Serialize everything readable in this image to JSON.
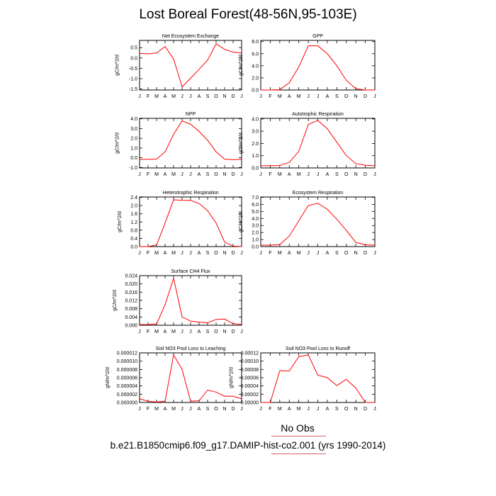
{
  "title": "Lost Boreal Forest(48-56N,95-103E)",
  "footer": {
    "obs_label": "No Obs",
    "case_label": "b.e21.B1850cmip6.f09_g17.DAMIP-hist-co2.001 (yrs 1990-2014)"
  },
  "colors": {
    "model_line": "#ff0000",
    "footer_rule": "#e06060"
  },
  "chart_data": [
    {
      "type": "line",
      "title": "Net Ecosystem Exchange",
      "ylabel": "gC/m^2/d",
      "categories": [
        "J",
        "F",
        "M",
        "A",
        "M",
        "J",
        "J",
        "A",
        "S",
        "O",
        "N",
        "D",
        "J"
      ],
      "ylim": [
        -1.55,
        0.85
      ],
      "yticks": [
        -1.5,
        -1.0,
        -0.5,
        0.0,
        0.5
      ],
      "ytick_labels": [
        "-1.5",
        "-1.0",
        "-0.5",
        "0.0",
        "0.5"
      ],
      "series": [
        {
          "values": [
            0.22,
            0.2,
            0.24,
            0.55,
            -0.05,
            -1.4,
            -0.98,
            -0.55,
            -0.1,
            0.68,
            0.42,
            0.28,
            0.24
          ]
        }
      ]
    },
    {
      "type": "line",
      "title": "GPP",
      "ylabel": "gC/m^2/d",
      "categories": [
        "J",
        "F",
        "M",
        "A",
        "M",
        "J",
        "J",
        "A",
        "S",
        "O",
        "N",
        "D",
        "J"
      ],
      "ylim": [
        0,
        8.2
      ],
      "yticks": [
        0,
        2,
        4,
        6,
        8
      ],
      "ytick_labels": [
        "0.0",
        "2.0",
        "4.0",
        "6.0",
        "8.0"
      ],
      "series": [
        {
          "values": [
            0.0,
            0.0,
            0.05,
            1.2,
            3.8,
            7.3,
            7.3,
            6.0,
            4.0,
            1.6,
            0.2,
            0.0,
            0.0
          ]
        }
      ]
    },
    {
      "type": "line",
      "title": "NPP",
      "ylabel": "gC/m^2/d",
      "categories": [
        "J",
        "F",
        "M",
        "A",
        "M",
        "J",
        "J",
        "A",
        "S",
        "O",
        "N",
        "D",
        "J"
      ],
      "ylim": [
        -1.05,
        4.05
      ],
      "yticks": [
        -1,
        0,
        1,
        2,
        3,
        4
      ],
      "ytick_labels": [
        "-1.0",
        "0.0",
        "1.0",
        "2.0",
        "3.0",
        "4.0"
      ],
      "series": [
        {
          "values": [
            -0.18,
            -0.16,
            -0.14,
            0.6,
            2.4,
            3.78,
            3.45,
            2.7,
            1.8,
            0.6,
            -0.15,
            -0.2,
            -0.18
          ]
        }
      ]
    },
    {
      "type": "line",
      "title": "Autotrophic Respiration",
      "ylabel": "gC/m^2/d",
      "categories": [
        "J",
        "F",
        "M",
        "A",
        "M",
        "J",
        "J",
        "A",
        "S",
        "O",
        "N",
        "D",
        "J"
      ],
      "ylim": [
        0,
        4.05
      ],
      "yticks": [
        0,
        1,
        2,
        3,
        4
      ],
      "ytick_labels": [
        "0.0",
        "1.0",
        "2.0",
        "3.0",
        "4.0"
      ],
      "series": [
        {
          "values": [
            0.18,
            0.18,
            0.2,
            0.45,
            1.35,
            3.55,
            3.88,
            3.2,
            2.1,
            1.0,
            0.35,
            0.22,
            0.18
          ]
        }
      ]
    },
    {
      "type": "line",
      "title": "Heterotrophic Respiration",
      "ylabel": "gC/m^2/d",
      "categories": [
        "J",
        "F",
        "M",
        "A",
        "M",
        "J",
        "J",
        "A",
        "S",
        "O",
        "N",
        "D",
        "J"
      ],
      "ylim": [
        0,
        2.42
      ],
      "yticks": [
        0,
        0.4,
        0.8,
        1.2,
        1.6,
        2.0,
        2.4
      ],
      "ytick_labels": [
        "0.0",
        "0.4",
        "0.8",
        "1.2",
        "1.6",
        "2.0",
        "2.4"
      ],
      "series": [
        {
          "values": [
            0.0,
            0.0,
            0.08,
            1.15,
            2.28,
            2.26,
            2.25,
            2.1,
            1.75,
            1.15,
            0.22,
            0.02,
            0.0
          ]
        }
      ]
    },
    {
      "type": "line",
      "title": "Ecosystem Respiration",
      "ylabel": "gC/m^2/d",
      "categories": [
        "J",
        "F",
        "M",
        "A",
        "M",
        "J",
        "J",
        "A",
        "S",
        "O",
        "N",
        "D",
        "J"
      ],
      "ylim": [
        0,
        7.05
      ],
      "yticks": [
        0,
        1,
        2,
        3,
        4,
        5,
        6,
        7
      ],
      "ytick_labels": [
        "0.0",
        "1.0",
        "2.0",
        "3.0",
        "4.0",
        "5.0",
        "6.0",
        "7.0"
      ],
      "series": [
        {
          "values": [
            0.2,
            0.2,
            0.28,
            1.5,
            3.65,
            5.85,
            6.15,
            5.3,
            3.9,
            2.3,
            0.6,
            0.25,
            0.2
          ]
        }
      ]
    },
    {
      "type": "line",
      "title": "Surface CH4 Flux",
      "ylabel": "gC/m^2/d",
      "categories": [
        "J",
        "F",
        "M",
        "A",
        "M",
        "J",
        "J",
        "A",
        "S",
        "O",
        "N",
        "D",
        "J"
      ],
      "ylim": [
        0,
        0.024
      ],
      "yticks": [
        0,
        0.004,
        0.008,
        0.012,
        0.016,
        0.02,
        0.024
      ],
      "ytick_labels": [
        "0.000",
        "0.004",
        "0.008",
        "0.012",
        "0.016",
        "0.020",
        "0.024"
      ],
      "series": [
        {
          "values": [
            0.0003,
            0.0003,
            0.0006,
            0.01,
            0.0227,
            0.004,
            0.002,
            0.0015,
            0.0012,
            0.0028,
            0.003,
            0.0008,
            0.0004
          ]
        }
      ]
    },
    {
      "type": "line",
      "title": "Soil NO3 Pool Loss to Leaching",
      "ylabel": "gN/m^2/d",
      "categories": [
        "J",
        "F",
        "M",
        "A",
        "M",
        "J",
        "J",
        "A",
        "S",
        "O",
        "N",
        "D",
        "J"
      ],
      "ylim": [
        0,
        1.2e-05
      ],
      "yticks": [
        0,
        2e-06,
        4e-06,
        6e-06,
        8e-06,
        1e-05,
        1.2e-05
      ],
      "ytick_labels": [
        "0.000000",
        "0.000002",
        "0.000004",
        "0.000006",
        "0.000008",
        "0.000010",
        "0.000012"
      ],
      "series": [
        {
          "values": [
            9e-07,
            3e-07,
            1e-07,
            3e-07,
            1.15e-05,
            8e-06,
            3e-07,
            4e-07,
            3e-06,
            2.5e-06,
            1.5e-06,
            1.5e-06,
            9e-07
          ]
        }
      ]
    },
    {
      "type": "line",
      "title": "Soil NO3 Pool Loss to Runoff",
      "ylabel": "gN/m^2/d",
      "categories": [
        "J",
        "F",
        "M",
        "A",
        "M",
        "J",
        "J",
        "A",
        "S",
        "O",
        "N",
        "D",
        "J"
      ],
      "ylim": [
        0,
        0.00012
      ],
      "yticks": [
        0,
        2e-05,
        4e-05,
        6e-05,
        8e-05,
        0.0001,
        0.00012
      ],
      "ytick_labels": [
        "0.00000",
        "0.00002",
        "0.00004",
        "0.00006",
        "0.00008",
        "0.00010",
        "0.00012"
      ],
      "series": [
        {
          "values": [
            0.0,
            0.0,
            7.7e-05,
            7.6e-05,
            0.000111,
            0.000115,
            6.6e-05,
            6e-05,
            4.1e-05,
            5.6e-05,
            3.5e-05,
            0.0,
            0.0
          ]
        }
      ]
    }
  ]
}
